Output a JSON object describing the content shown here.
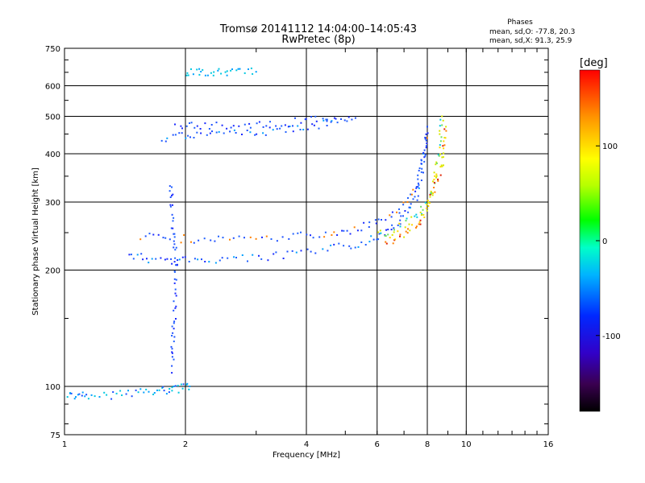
{
  "chart_data": {
    "type": "scatter",
    "title": "Tromsø 20141112 14:04:00–14:05:43",
    "subtitle": "RwPretec (8p)",
    "xlabel": "Frequency [MHz]",
    "ylabel": "Stationary phase Virtual Height [km]",
    "x_scale": "log2",
    "y_scale": "log",
    "xlim": [
      1,
      16
    ],
    "ylim": [
      75,
      750
    ],
    "x_ticks": [
      "1",
      "2",
      "4",
      "6",
      "8",
      "10",
      "16"
    ],
    "y_ticks": [
      "75",
      "100",
      "200",
      "300",
      "400",
      "500",
      "600",
      "750"
    ],
    "grid": true,
    "phases_box": {
      "title": "Phases",
      "line_o": "mean, sd,O:  -77.8, 20.3",
      "line_x": "mean, sd,X:  91.3, 25.9"
    },
    "colorbar": {
      "label": "[deg]",
      "ticks": [
        "100",
        "0",
        "-100"
      ],
      "range": [
        -180,
        180
      ]
    },
    "series": [
      {
        "x": [
          1.45,
          1.6,
          1.8,
          2.0,
          2.3,
          2.7,
          3.2,
          3.8,
          4.5,
          5.2,
          5.8,
          6.3,
          6.8,
          7.2,
          7.5,
          7.7,
          7.85,
          7.95
        ],
        "y": [
          220,
          214,
          212,
          212,
          213,
          214,
          216,
          220,
          226,
          232,
          240,
          250,
          265,
          285,
          310,
          345,
          390,
          440
        ]
      },
      {
        "x": [
          1.55,
          1.8,
          2.1,
          2.5,
          3.0,
          3.6,
          4.2,
          4.8,
          5.4,
          6.0,
          6.6,
          7.1,
          7.5,
          7.75,
          7.9,
          8.0
        ],
        "y": [
          246,
          242,
          240,
          240,
          241,
          243,
          246,
          250,
          256,
          265,
          280,
          300,
          330,
          370,
          420,
          470
        ]
      },
      {
        "x": [
          1.75,
          1.95,
          2.2,
          2.5,
          2.9,
          3.3,
          3.8,
          4.3,
          4.8,
          5.3
        ],
        "y": [
          440,
          445,
          448,
          450,
          453,
          458,
          465,
          475,
          485,
          495
        ]
      },
      {
        "x": [
          1.9,
          2.1,
          2.4,
          2.8,
          3.2,
          3.7,
          4.2,
          4.7
        ],
        "y": [
          470,
          472,
          474,
          476,
          478,
          482,
          488,
          495
        ]
      },
      {
        "x": [
          6.0,
          6.5,
          7.0,
          7.5,
          7.9,
          8.2,
          8.4,
          8.55,
          8.65,
          8.7
        ],
        "y": [
          245,
          252,
          262,
          275,
          295,
          320,
          355,
          400,
          450,
          500
        ]
      },
      {
        "x": [
          6.3,
          6.8,
          7.3,
          7.7,
          8.0,
          8.3,
          8.5,
          8.7,
          8.8,
          8.9
        ],
        "y": [
          235,
          245,
          255,
          268,
          290,
          315,
          345,
          380,
          420,
          470
        ]
      },
      {
        "x": [
          1.02,
          1.08,
          1.15,
          1.3,
          1.45,
          1.6,
          1.75,
          1.85,
          1.95,
          2.05
        ],
        "y": [
          96,
          95,
          94,
          95,
          96,
          97,
          98,
          98,
          99,
          100
        ]
      },
      {
        "x": [
          1.85,
          1.86,
          1.87,
          1.88,
          1.89,
          1.9,
          1.88,
          1.86,
          1.85,
          1.83
        ],
        "y": [
          110,
          125,
          140,
          160,
          185,
          205,
          230,
          260,
          300,
          330
        ]
      },
      {
        "x": [
          2.0,
          2.15,
          2.3,
          2.5,
          2.7,
          3.0
        ],
        "y": [
          650,
          650,
          652,
          648,
          650,
          652
        ]
      }
    ]
  }
}
